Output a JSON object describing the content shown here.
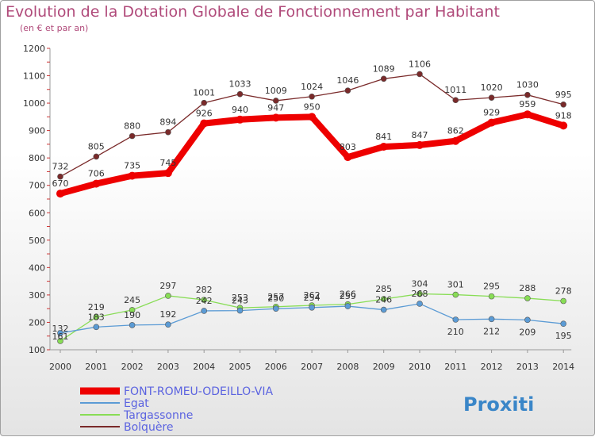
{
  "title": "Evolution de la Dotation Globale de Fonctionnement par Habitant",
  "subtitle": "(en € et par an)",
  "logo_text": "Proxiti",
  "chart_data": {
    "type": "line",
    "x": [
      "2000",
      "2001",
      "2002",
      "2003",
      "2004",
      "2005",
      "2006",
      "2007",
      "2008",
      "2009",
      "2010",
      "2011",
      "2012",
      "2013",
      "2014"
    ],
    "ylim": [
      100,
      1200
    ],
    "yticks": [
      100,
      200,
      300,
      400,
      500,
      600,
      700,
      800,
      900,
      1000,
      1100,
      1200
    ],
    "grid": false,
    "legend_position": "bottom-left",
    "series": [
      {
        "name": "FONT-ROMEU-ODEILLO-VIA",
        "color": "#ee0000",
        "values": [
          670,
          706,
          735,
          745,
          926,
          940,
          947,
          950,
          803,
          841,
          847,
          862,
          929,
          959,
          918
        ]
      },
      {
        "name": "Egat",
        "color": "#5b9bd5",
        "values": [
          161,
          183,
          190,
          192,
          242,
          243,
          250,
          254,
          259,
          246,
          268,
          210,
          212,
          209,
          195
        ]
      },
      {
        "name": "Targassonne",
        "color": "#88dd55",
        "values": [
          132,
          219,
          245,
          297,
          282,
          253,
          257,
          262,
          266,
          285,
          304,
          301,
          295,
          288,
          278
        ]
      },
      {
        "name": "Bolquère",
        "color": "#7a2a2a",
        "values": [
          732,
          805,
          880,
          894,
          1001,
          1033,
          1009,
          1024,
          1046,
          1089,
          1106,
          1011,
          1020,
          1030,
          995
        ]
      }
    ]
  }
}
